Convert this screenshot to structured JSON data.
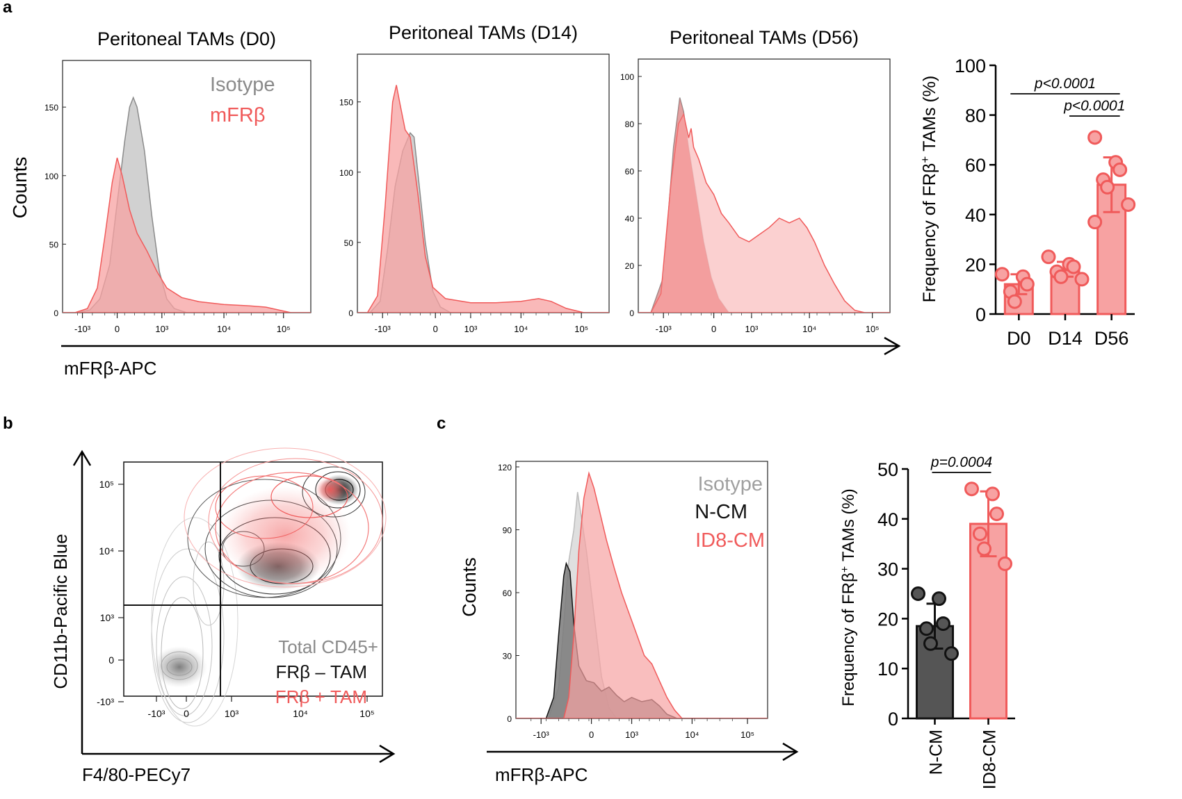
{
  "colors": {
    "red": "#f05a5a",
    "red_fill": "#f7a2a2",
    "red_light": "#fac8c8",
    "gray_fill": "#cfcfcf",
    "gray_line": "#8a8a8a",
    "dark": "#111111",
    "dark_fill": "#555555"
  },
  "panel_labels": {
    "a": "a",
    "b": "b",
    "c": "c"
  },
  "panel_a": {
    "axis_label_x": "mFRβ-APC",
    "axis_label_y": "Counts",
    "legend": {
      "isotype": "Isotype",
      "mfrb": "mFRβ"
    },
    "histograms": [
      {
        "title": "Peritoneal TAMs (D0)",
        "y_ticks": [
          "0",
          "50",
          "100",
          "150"
        ],
        "ymax": 180,
        "x_ticks": [
          "-10³",
          "0",
          "10³",
          "10⁴",
          "10⁵"
        ],
        "isotype": [
          [
            0.0,
            0
          ],
          [
            0.06,
            0
          ],
          [
            0.11,
            2
          ],
          [
            0.15,
            10
          ],
          [
            0.19,
            35
          ],
          [
            0.22,
            80
          ],
          [
            0.25,
            125
          ],
          [
            0.27,
            150
          ],
          [
            0.285,
            157
          ],
          [
            0.3,
            150
          ],
          [
            0.33,
            118
          ],
          [
            0.36,
            70
          ],
          [
            0.39,
            30
          ],
          [
            0.42,
            10
          ],
          [
            0.45,
            3
          ],
          [
            0.5,
            0
          ],
          [
            1.0,
            0
          ]
        ],
        "mfrb": [
          [
            0.0,
            0
          ],
          [
            0.05,
            0
          ],
          [
            0.1,
            3
          ],
          [
            0.14,
            18
          ],
          [
            0.17,
            55
          ],
          [
            0.2,
            95
          ],
          [
            0.22,
            113
          ],
          [
            0.24,
            100
          ],
          [
            0.27,
            75
          ],
          [
            0.3,
            58
          ],
          [
            0.34,
            45
          ],
          [
            0.38,
            30
          ],
          [
            0.42,
            18
          ],
          [
            0.48,
            11
          ],
          [
            0.55,
            8
          ],
          [
            0.65,
            6
          ],
          [
            0.75,
            5
          ],
          [
            0.82,
            4
          ],
          [
            0.87,
            2
          ],
          [
            0.92,
            0
          ],
          [
            1.0,
            0
          ]
        ]
      },
      {
        "title": "Peritoneal TAMs (D14)",
        "y_ticks": [
          "0",
          "50",
          "100",
          "150"
        ],
        "ymax": 180,
        "x_ticks": [
          "-10³",
          "0",
          "10³",
          "10⁴",
          "10⁵"
        ],
        "isotype": [
          [
            0.0,
            0
          ],
          [
            0.05,
            0
          ],
          [
            0.09,
            8
          ],
          [
            0.12,
            45
          ],
          [
            0.15,
            90
          ],
          [
            0.18,
            115
          ],
          [
            0.21,
            128
          ],
          [
            0.225,
            125
          ],
          [
            0.24,
            100
          ],
          [
            0.27,
            50
          ],
          [
            0.3,
            15
          ],
          [
            0.33,
            4
          ],
          [
            0.37,
            0
          ],
          [
            1.0,
            0
          ]
        ],
        "mfrb": [
          [
            0.0,
            0
          ],
          [
            0.04,
            0
          ],
          [
            0.08,
            12
          ],
          [
            0.11,
            75
          ],
          [
            0.14,
            150
          ],
          [
            0.155,
            162
          ],
          [
            0.17,
            148
          ],
          [
            0.19,
            130
          ],
          [
            0.21,
            125
          ],
          [
            0.24,
            85
          ],
          [
            0.27,
            40
          ],
          [
            0.3,
            18
          ],
          [
            0.35,
            10
          ],
          [
            0.45,
            7
          ],
          [
            0.55,
            7
          ],
          [
            0.65,
            8
          ],
          [
            0.72,
            10
          ],
          [
            0.77,
            8
          ],
          [
            0.83,
            3
          ],
          [
            0.9,
            0
          ],
          [
            1.0,
            0
          ]
        ]
      },
      {
        "title": "Peritoneal TAMs (D56)",
        "y_ticks": [
          "0",
          "20",
          "40",
          "60",
          "80",
          "100"
        ],
        "ymax": 105,
        "x_ticks": [
          "-10³",
          "0",
          "10³",
          "10⁴",
          "10⁵"
        ],
        "isotype": [
          [
            0.0,
            0
          ],
          [
            0.05,
            0
          ],
          [
            0.1,
            15
          ],
          [
            0.14,
            70
          ],
          [
            0.165,
            91
          ],
          [
            0.18,
            85
          ],
          [
            0.2,
            70
          ],
          [
            0.23,
            50
          ],
          [
            0.26,
            30
          ],
          [
            0.29,
            15
          ],
          [
            0.32,
            6
          ],
          [
            0.36,
            0
          ],
          [
            1.0,
            0
          ]
        ],
        "mfrb": [
          [
            0.0,
            0
          ],
          [
            0.05,
            0
          ],
          [
            0.09,
            8
          ],
          [
            0.13,
            55
          ],
          [
            0.16,
            80
          ],
          [
            0.18,
            84
          ],
          [
            0.2,
            74
          ],
          [
            0.21,
            78
          ],
          [
            0.22,
            70
          ],
          [
            0.24,
            65
          ],
          [
            0.27,
            55
          ],
          [
            0.3,
            50
          ],
          [
            0.33,
            42
          ],
          [
            0.36,
            38
          ],
          [
            0.4,
            32
          ],
          [
            0.44,
            30
          ],
          [
            0.48,
            33
          ],
          [
            0.52,
            36
          ],
          [
            0.56,
            40
          ],
          [
            0.6,
            38
          ],
          [
            0.64,
            40
          ],
          [
            0.67,
            36
          ],
          [
            0.7,
            30
          ],
          [
            0.74,
            20
          ],
          [
            0.78,
            12
          ],
          [
            0.82,
            5
          ],
          [
            0.86,
            1
          ],
          [
            0.9,
            0
          ],
          [
            1.0,
            0
          ]
        ]
      }
    ]
  },
  "panel_a_bar": {
    "type": "bar",
    "ylabel_main": "Frequency of FRβ",
    "ylabel_sup": "+",
    "ylabel_tail": " TAMs (%)",
    "ylim": [
      0,
      100
    ],
    "y_ticks": [
      0,
      20,
      40,
      60,
      80,
      100
    ],
    "categories": [
      "D0",
      "D14",
      "D56"
    ],
    "values": [
      12,
      18,
      52
    ],
    "sd": [
      4,
      3,
      11
    ],
    "points": [
      [
        16,
        15,
        12,
        9,
        5
      ],
      [
        23,
        20,
        19,
        17,
        15,
        14
      ],
      [
        71,
        61,
        58,
        54,
        51,
        44,
        37
      ]
    ],
    "comparisons": [
      {
        "from": 0,
        "to": 2,
        "label": "p<0.0001"
      },
      {
        "from": 1,
        "to": 2,
        "label": "p<0.0001"
      }
    ]
  },
  "panel_b": {
    "axis_label_x": "F4/80-PECy7",
    "axis_label_y": "CD11b-Pacific Blue",
    "x_ticks": [
      "-10³",
      "0",
      "10³",
      "10⁴",
      "10⁵"
    ],
    "y_ticks": [
      "10⁵",
      "10⁴",
      "10³",
      "0",
      "-10³"
    ],
    "legend": [
      "Total CD45+",
      "FRβ – TAM",
      "FRβ + TAM"
    ]
  },
  "panel_c": {
    "axis_label_x": "mFRβ-APC",
    "axis_label_y": "Counts",
    "y_ticks": [
      "0",
      "30",
      "60",
      "90",
      "120"
    ],
    "ymax": 120,
    "x_ticks": [
      "-10³",
      "0",
      "10³",
      "10⁴",
      "10⁵"
    ],
    "legend": [
      "Isotype",
      "N-CM",
      "ID8-CM"
    ],
    "isotype": [
      [
        0.0,
        0
      ],
      [
        0.13,
        0
      ],
      [
        0.17,
        15
      ],
      [
        0.19,
        45
      ],
      [
        0.21,
        75
      ],
      [
        0.23,
        90
      ],
      [
        0.245,
        108
      ],
      [
        0.26,
        96
      ],
      [
        0.28,
        80
      ],
      [
        0.31,
        50
      ],
      [
        0.34,
        20
      ],
      [
        0.37,
        5
      ],
      [
        0.4,
        0
      ],
      [
        1.0,
        0
      ]
    ],
    "ncm": [
      [
        0.0,
        0
      ],
      [
        0.12,
        0
      ],
      [
        0.15,
        10
      ],
      [
        0.17,
        40
      ],
      [
        0.19,
        68
      ],
      [
        0.2,
        74
      ],
      [
        0.215,
        70
      ],
      [
        0.23,
        45
      ],
      [
        0.25,
        25
      ],
      [
        0.28,
        18
      ],
      [
        0.31,
        17
      ],
      [
        0.34,
        13
      ],
      [
        0.37,
        15
      ],
      [
        0.4,
        11
      ],
      [
        0.43,
        8
      ],
      [
        0.46,
        10
      ],
      [
        0.5,
        8
      ],
      [
        0.54,
        9
      ],
      [
        0.57,
        6
      ],
      [
        0.6,
        2
      ],
      [
        0.64,
        0
      ],
      [
        1.0,
        0
      ]
    ],
    "id8cm": [
      [
        0.0,
        0
      ],
      [
        0.19,
        0
      ],
      [
        0.21,
        10
      ],
      [
        0.23,
        40
      ],
      [
        0.25,
        80
      ],
      [
        0.27,
        105
      ],
      [
        0.29,
        117
      ],
      [
        0.31,
        110
      ],
      [
        0.33,
        100
      ],
      [
        0.36,
        85
      ],
      [
        0.39,
        72
      ],
      [
        0.42,
        60
      ],
      [
        0.45,
        50
      ],
      [
        0.48,
        40
      ],
      [
        0.51,
        30
      ],
      [
        0.54,
        26
      ],
      [
        0.57,
        18
      ],
      [
        0.6,
        10
      ],
      [
        0.63,
        4
      ],
      [
        0.66,
        0
      ],
      [
        1.0,
        0
      ]
    ]
  },
  "panel_c_bar": {
    "type": "bar",
    "ylabel_main": "Frequency of FRβ",
    "ylabel_sup": "+",
    "ylabel_tail": " TAMs (%)",
    "ylim": [
      0,
      50
    ],
    "y_ticks": [
      0,
      10,
      20,
      30,
      40,
      50
    ],
    "categories": [
      "N-CM",
      "ID8-CM"
    ],
    "values": [
      18.5,
      39
    ],
    "sd": [
      4.5,
      6.5
    ],
    "points": [
      [
        25,
        24,
        19,
        18,
        15,
        13
      ],
      [
        46,
        45,
        41,
        37,
        34,
        31
      ]
    ],
    "comparisons": [
      {
        "from": 0,
        "to": 1,
        "label": "p=0.0004"
      }
    ]
  }
}
